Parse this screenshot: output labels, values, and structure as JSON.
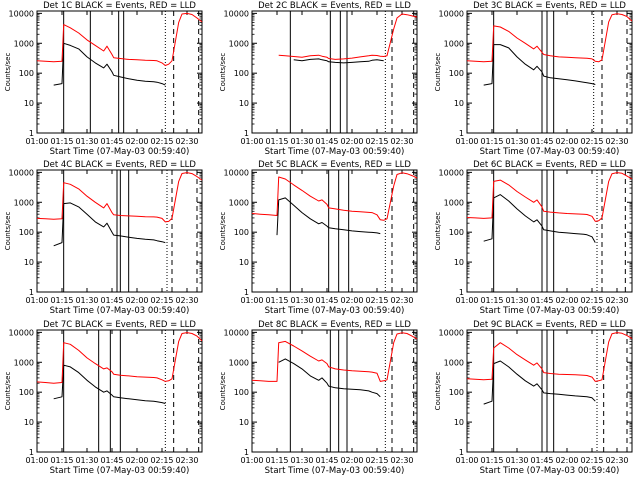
{
  "colors": {
    "events": "#000000",
    "lld": "#ff0000",
    "axes": "#000000",
    "background": "#ffffff"
  },
  "common": {
    "xlabel": "Start Time (07-May-03 00:59:40)",
    "ylabel": "Counts/sec",
    "x_tick_labels": [
      "01:00",
      "01:15",
      "01:30",
      "01:45",
      "02:00",
      "02:15",
      "02:30"
    ],
    "y_tick_labels": [
      "1",
      "10",
      "100",
      "1000",
      "10000"
    ],
    "x_unit": "minutes after 01:00",
    "xlim": [
      0,
      99
    ],
    "ylim": [
      1,
      12000
    ],
    "yscale": "log"
  },
  "chart_data": [
    {
      "type": "line",
      "title": "Det 1C BLACK = Events, RED = LLD",
      "x": [
        0,
        5,
        10,
        15,
        16,
        20,
        25,
        30,
        35,
        40,
        42,
        45,
        46,
        50,
        55,
        60,
        65,
        70,
        72,
        75,
        77,
        79,
        81,
        85,
        87,
        90,
        93,
        96,
        99
      ],
      "series": [
        {
          "name": "Events",
          "color": "#000000",
          "values": [
            null,
            null,
            40,
            45,
            1000,
            850,
            650,
            350,
            220,
            150,
            200,
            110,
            85,
            75,
            65,
            58,
            54,
            52,
            50,
            45,
            40,
            null,
            null,
            null,
            null,
            null,
            null,
            null,
            null
          ]
        },
        {
          "name": "LLD",
          "color": "#ff0000",
          "values": [
            260,
            250,
            240,
            250,
            4200,
            3300,
            2200,
            1300,
            850,
            550,
            800,
            420,
            330,
            310,
            290,
            280,
            270,
            265,
            260,
            220,
            180,
            200,
            260,
            5000,
            9500,
            10000,
            9200,
            7000,
            5200
          ]
        }
      ],
      "solid_markers": [
        16,
        32,
        49,
        52
      ],
      "dotted_markers": [
        77
      ],
      "dashed_markers": [
        82,
        97
      ]
    },
    {
      "type": "line",
      "title": "Det 2C BLACK = Events, RED = LLD",
      "x": [
        0,
        5,
        10,
        15,
        16,
        20,
        25,
        30,
        35,
        40,
        42,
        45,
        46,
        50,
        55,
        60,
        65,
        70,
        72,
        75,
        77,
        79,
        81,
        85,
        87,
        90,
        93,
        96,
        99
      ],
      "series": [
        {
          "name": "Events",
          "color": "#000000",
          "values": [
            null,
            null,
            null,
            null,
            null,
            null,
            280,
            260,
            290,
            300,
            280,
            260,
            240,
            230,
            220,
            230,
            240,
            250,
            270,
            280,
            270,
            260,
            null,
            null,
            null,
            null,
            null,
            null,
            null
          ]
        },
        {
          "name": "LLD",
          "color": "#ff0000",
          "values": [
            null,
            null,
            null,
            null,
            400,
            380,
            360,
            340,
            380,
            400,
            370,
            340,
            310,
            290,
            300,
            320,
            350,
            380,
            400,
            390,
            370,
            360,
            380,
            3000,
            7000,
            9500,
            9000,
            8200,
            7500
          ]
        }
      ],
      "solid_markers": [
        23,
        47,
        53,
        57
      ],
      "dotted_markers": [
        80
      ],
      "dashed_markers": [
        84,
        97
      ]
    },
    {
      "type": "line",
      "title": "Det 3C BLACK = Events, RED = LLD",
      "x": [
        0,
        5,
        10,
        15,
        16,
        20,
        25,
        30,
        35,
        40,
        42,
        45,
        46,
        50,
        55,
        60,
        65,
        70,
        72,
        75,
        77,
        79,
        81,
        85,
        87,
        90,
        93,
        96,
        99
      ],
      "series": [
        {
          "name": "Events",
          "color": "#000000",
          "values": [
            null,
            null,
            40,
            45,
            900,
            900,
            700,
            350,
            200,
            130,
            170,
            110,
            80,
            70,
            65,
            60,
            55,
            50,
            48,
            45,
            42,
            null,
            null,
            null,
            null,
            null,
            null,
            null,
            null
          ]
        },
        {
          "name": "LLD",
          "color": "#ff0000",
          "values": [
            260,
            250,
            240,
            250,
            3800,
            3500,
            2500,
            1500,
            1000,
            650,
            800,
            500,
            420,
            380,
            350,
            340,
            330,
            320,
            315,
            300,
            250,
            240,
            280,
            5200,
            9000,
            9700,
            9200,
            7800,
            5500
          ]
        }
      ],
      "solid_markers": [
        16,
        45,
        48,
        52
      ],
      "dotted_markers": [
        76
      ],
      "dashed_markers": [
        81,
        96
      ]
    },
    {
      "type": "line",
      "title": "Det 4C BLACK = Events, RED = LLD",
      "x": [
        0,
        5,
        10,
        15,
        16,
        20,
        25,
        30,
        35,
        40,
        42,
        45,
        46,
        50,
        55,
        60,
        65,
        70,
        72,
        75,
        77,
        79,
        81,
        85,
        87,
        90,
        93,
        96,
        99
      ],
      "series": [
        {
          "name": "Events",
          "color": "#000000",
          "values": [
            null,
            null,
            35,
            45,
            900,
            950,
            700,
            400,
            220,
            150,
            200,
            100,
            80,
            75,
            68,
            62,
            58,
            55,
            52,
            48,
            45,
            null,
            null,
            null,
            null,
            null,
            null,
            null,
            null
          ]
        },
        {
          "name": "LLD",
          "color": "#ff0000",
          "values": [
            290,
            280,
            270,
            280,
            4500,
            4000,
            2800,
            1600,
            1000,
            650,
            900,
            450,
            380,
            360,
            350,
            340,
            330,
            325,
            320,
            290,
            220,
            230,
            290,
            5000,
            9200,
            9800,
            9100,
            7200,
            5500
          ]
        }
      ],
      "solid_markers": [
        16,
        48,
        50,
        55
      ],
      "dotted_markers": [
        78
      ],
      "dashed_markers": [
        81,
        96
      ]
    },
    {
      "type": "line",
      "title": "Det 5C BLACK = Events, RED = LLD",
      "x": [
        0,
        5,
        10,
        15,
        16,
        20,
        25,
        30,
        35,
        40,
        42,
        45,
        46,
        50,
        55,
        60,
        65,
        70,
        72,
        75,
        77,
        79,
        81,
        85,
        87,
        90,
        93,
        96,
        99
      ],
      "series": [
        {
          "name": "Events",
          "color": "#000000",
          "values": [
            null,
            null,
            null,
            80,
            1200,
            1400,
            800,
            450,
            280,
            190,
            210,
            160,
            140,
            130,
            120,
            110,
            105,
            100,
            98,
            95,
            90,
            null,
            null,
            null,
            null,
            null,
            null,
            null,
            null
          ]
        },
        {
          "name": "LLD",
          "color": "#ff0000",
          "values": [
            420,
            400,
            380,
            360,
            7000,
            6000,
            3800,
            2500,
            1600,
            1100,
            1200,
            850,
            650,
            600,
            540,
            500,
            480,
            460,
            450,
            380,
            260,
            250,
            280,
            3500,
            8500,
            9700,
            9000,
            7800,
            6500
          ]
        }
      ],
      "solid_markers": [
        23,
        46,
        52,
        58
      ],
      "dotted_markers": [
        80
      ],
      "dashed_markers": [
        84,
        97
      ]
    },
    {
      "type": "line",
      "title": "Det 6C BLACK = Events, RED = LLD",
      "x": [
        0,
        5,
        10,
        15,
        16,
        20,
        25,
        30,
        35,
        40,
        42,
        45,
        46,
        50,
        55,
        60,
        65,
        70,
        72,
        75,
        77,
        79,
        81,
        85,
        87,
        90,
        93,
        96,
        99
      ],
      "series": [
        {
          "name": "Events",
          "color": "#000000",
          "values": [
            null,
            null,
            50,
            60,
            1400,
            1800,
            1100,
            600,
            350,
            220,
            260,
            160,
            120,
            110,
            100,
            95,
            90,
            85,
            82,
            70,
            45,
            null,
            null,
            null,
            null,
            null,
            null,
            null,
            null
          ]
        },
        {
          "name": "LLD",
          "color": "#ff0000",
          "values": [
            310,
            300,
            290,
            300,
            5000,
            5500,
            3800,
            2300,
            1500,
            1000,
            1200,
            700,
            500,
            470,
            440,
            420,
            410,
            400,
            390,
            340,
            230,
            240,
            300,
            5000,
            9000,
            9800,
            9300,
            7500,
            6000
          ]
        }
      ],
      "solid_markers": [
        16,
        45,
        48,
        52
      ],
      "dotted_markers": [
        78
      ],
      "dashed_markers": [
        81,
        95
      ]
    },
    {
      "type": "line",
      "title": "Det 7C BLACK = Events, RED = LLD",
      "x": [
        0,
        5,
        10,
        15,
        16,
        20,
        25,
        30,
        35,
        40,
        42,
        45,
        46,
        50,
        55,
        60,
        65,
        70,
        72,
        75,
        77,
        79,
        81,
        85,
        87,
        90,
        93,
        96,
        99
      ],
      "series": [
        {
          "name": "Events",
          "color": "#000000",
          "values": [
            null,
            null,
            60,
            70,
            800,
            700,
            450,
            250,
            150,
            100,
            110,
            80,
            70,
            65,
            60,
            56,
            52,
            50,
            48,
            45,
            42,
            null,
            null,
            null,
            null,
            null,
            null,
            null,
            null
          ]
        },
        {
          "name": "LLD",
          "color": "#ff0000",
          "values": [
            220,
            210,
            200,
            210,
            4500,
            4000,
            2500,
            1400,
            900,
            600,
            650,
            480,
            400,
            370,
            350,
            330,
            320,
            310,
            300,
            260,
            230,
            240,
            280,
            5000,
            9200,
            9800,
            9200,
            7500,
            5200
          ]
        }
      ],
      "solid_markers": [
        16,
        37,
        44,
        50
      ],
      "dotted_markers": [
        77
      ],
      "dashed_markers": [
        82,
        97
      ]
    },
    {
      "type": "line",
      "title": "Det 8C BLACK = Events, RED = LLD",
      "x": [
        0,
        5,
        10,
        15,
        16,
        20,
        25,
        30,
        35,
        40,
        42,
        45,
        46,
        50,
        55,
        60,
        65,
        70,
        72,
        75,
        77,
        79,
        81,
        85,
        87,
        90,
        93,
        96,
        99
      ],
      "series": [
        {
          "name": "Events",
          "color": "#000000",
          "values": [
            null,
            null,
            null,
            null,
            1000,
            1300,
            900,
            600,
            350,
            250,
            300,
            200,
            160,
            140,
            130,
            125,
            120,
            110,
            100,
            90,
            70,
            null,
            null,
            null,
            null,
            null,
            null,
            null,
            null
          ]
        },
        {
          "name": "LLD",
          "color": "#ff0000",
          "values": [
            250,
            240,
            230,
            230,
            4500,
            5000,
            3500,
            2400,
            1600,
            1100,
            1200,
            900,
            700,
            600,
            550,
            520,
            500,
            480,
            470,
            430,
            230,
            240,
            260,
            4500,
            8800,
            9700,
            9200,
            7500,
            6000
          ]
        }
      ],
      "solid_markers": [
        23,
        47,
        52,
        57
      ],
      "dotted_markers": [
        80
      ],
      "dashed_markers": [
        84,
        97
      ]
    },
    {
      "type": "line",
      "title": "Det 9C BLACK = Events, RED = LLD",
      "x": [
        0,
        5,
        10,
        15,
        16,
        20,
        25,
        30,
        35,
        40,
        42,
        45,
        46,
        50,
        55,
        60,
        65,
        70,
        72,
        75,
        77,
        79,
        81,
        85,
        87,
        90,
        93,
        96,
        99
      ],
      "series": [
        {
          "name": "Events",
          "color": "#000000",
          "values": [
            null,
            null,
            40,
            50,
            900,
            1100,
            700,
            400,
            240,
            160,
            190,
            120,
            95,
            90,
            85,
            80,
            75,
            72,
            70,
            65,
            50,
            null,
            null,
            null,
            null,
            null,
            null,
            null,
            null
          ]
        },
        {
          "name": "LLD",
          "color": "#ff0000",
          "values": [
            280,
            270,
            260,
            270,
            3000,
            4500,
            3000,
            1800,
            1200,
            800,
            950,
            600,
            450,
            420,
            400,
            390,
            380,
            370,
            360,
            320,
            230,
            240,
            260,
            4800,
            9000,
            9800,
            9300,
            7800,
            6200
          ]
        }
      ],
      "solid_markers": [
        16,
        45,
        48,
        52
      ],
      "dotted_markers": [
        78
      ],
      "dashed_markers": [
        82,
        96
      ]
    }
  ]
}
